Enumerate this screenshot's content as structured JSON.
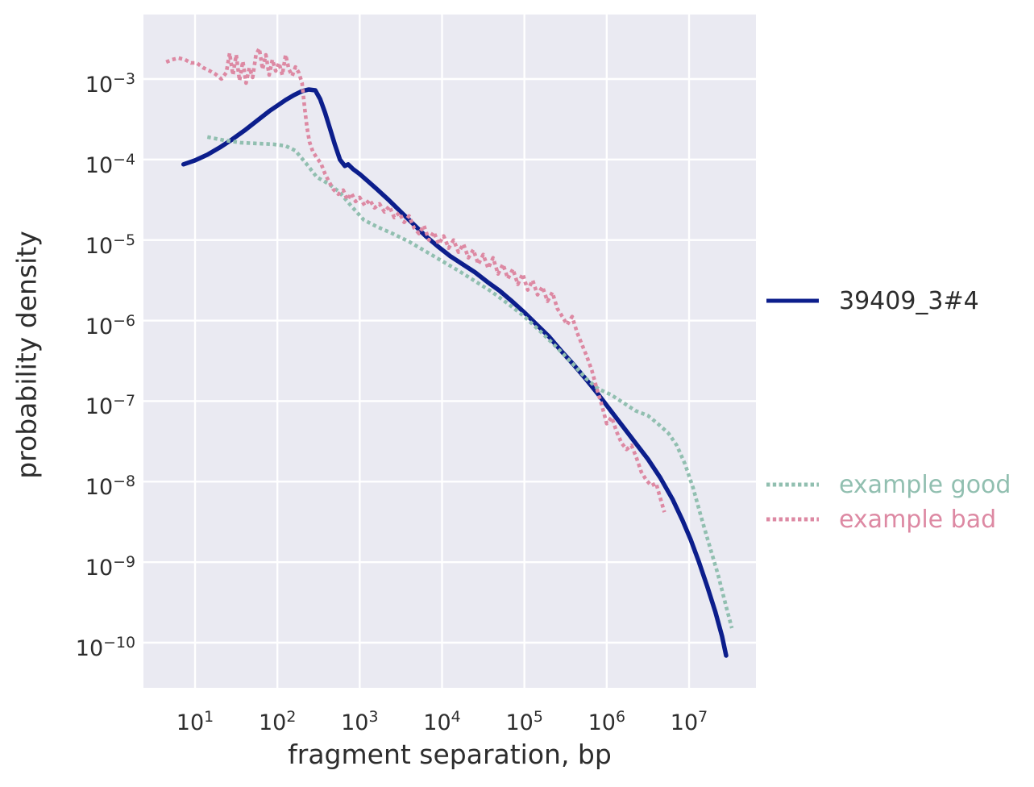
{
  "chart_data": {
    "type": "line",
    "title": "",
    "xlabel": "fragment separation, bp",
    "ylabel": "probability density",
    "x_scale": "log10",
    "y_scale": "log10",
    "tick_base": "10",
    "x_tick_exponents": [
      1,
      2,
      3,
      4,
      5,
      6,
      7
    ],
    "y_tick_exponents": [
      -3,
      -4,
      -5,
      -6,
      -7,
      -8,
      -9,
      -10
    ],
    "x_range_log10": [
      0.37,
      7.81
    ],
    "y_range_log10": [
      -10.56,
      -2.2
    ],
    "grid": true,
    "grid_color": "#ffffff",
    "background": "#eaeaf2",
    "legend_position": "right-outside",
    "series": [
      {
        "name": "39409_3#4",
        "color": "#0c1e8c",
        "style": "solid",
        "points_log10": [
          [
            0.86,
            -4.06
          ],
          [
            1.0,
            -4.01
          ],
          [
            1.15,
            -3.94
          ],
          [
            1.3,
            -3.85
          ],
          [
            1.45,
            -3.75
          ],
          [
            1.6,
            -3.64
          ],
          [
            1.75,
            -3.52
          ],
          [
            1.9,
            -3.4
          ],
          [
            2.0,
            -3.33
          ],
          [
            2.1,
            -3.26
          ],
          [
            2.2,
            -3.2
          ],
          [
            2.3,
            -3.15
          ],
          [
            2.38,
            -3.13
          ],
          [
            2.46,
            -3.14
          ],
          [
            2.52,
            -3.25
          ],
          [
            2.58,
            -3.42
          ],
          [
            2.64,
            -3.62
          ],
          [
            2.7,
            -3.82
          ],
          [
            2.76,
            -4.0
          ],
          [
            2.82,
            -4.08
          ],
          [
            2.86,
            -4.06
          ],
          [
            2.92,
            -4.12
          ],
          [
            3.0,
            -4.18
          ],
          [
            3.1,
            -4.27
          ],
          [
            3.2,
            -4.36
          ],
          [
            3.35,
            -4.5
          ],
          [
            3.5,
            -4.65
          ],
          [
            3.65,
            -4.8
          ],
          [
            3.8,
            -4.95
          ],
          [
            3.95,
            -5.08
          ],
          [
            4.1,
            -5.2
          ],
          [
            4.25,
            -5.3
          ],
          [
            4.4,
            -5.4
          ],
          [
            4.55,
            -5.52
          ],
          [
            4.7,
            -5.63
          ],
          [
            4.85,
            -5.76
          ],
          [
            5.0,
            -5.9
          ],
          [
            5.15,
            -6.05
          ],
          [
            5.3,
            -6.2
          ],
          [
            5.45,
            -6.38
          ],
          [
            5.6,
            -6.55
          ],
          [
            5.75,
            -6.73
          ],
          [
            5.9,
            -6.92
          ],
          [
            6.05,
            -7.12
          ],
          [
            6.2,
            -7.32
          ],
          [
            6.35,
            -7.52
          ],
          [
            6.5,
            -7.72
          ],
          [
            6.65,
            -7.95
          ],
          [
            6.8,
            -8.22
          ],
          [
            6.92,
            -8.48
          ],
          [
            7.02,
            -8.72
          ],
          [
            7.12,
            -9.0
          ],
          [
            7.22,
            -9.3
          ],
          [
            7.32,
            -9.62
          ],
          [
            7.4,
            -9.92
          ],
          [
            7.45,
            -10.16
          ]
        ]
      },
      {
        "name": "example good",
        "color": "#91bfb0",
        "style": "dotted",
        "points_log10": [
          [
            1.15,
            -3.72
          ],
          [
            1.35,
            -3.76
          ],
          [
            1.55,
            -3.79
          ],
          [
            1.75,
            -3.8
          ],
          [
            1.95,
            -3.81
          ],
          [
            2.1,
            -3.83
          ],
          [
            2.22,
            -3.89
          ],
          [
            2.35,
            -4.05
          ],
          [
            2.48,
            -4.22
          ],
          [
            2.62,
            -4.3
          ],
          [
            2.75,
            -4.4
          ],
          [
            2.9,
            -4.58
          ],
          [
            3.05,
            -4.75
          ],
          [
            3.2,
            -4.83
          ],
          [
            3.4,
            -4.92
          ],
          [
            3.6,
            -5.02
          ],
          [
            3.8,
            -5.14
          ],
          [
            4.0,
            -5.26
          ],
          [
            4.2,
            -5.38
          ],
          [
            4.4,
            -5.51
          ],
          [
            4.6,
            -5.64
          ],
          [
            4.8,
            -5.79
          ],
          [
            5.0,
            -5.95
          ],
          [
            5.2,
            -6.14
          ],
          [
            5.4,
            -6.34
          ],
          [
            5.6,
            -6.55
          ],
          [
            5.75,
            -6.72
          ],
          [
            5.9,
            -6.85
          ],
          [
            6.05,
            -6.92
          ],
          [
            6.2,
            -7.02
          ],
          [
            6.35,
            -7.12
          ],
          [
            6.5,
            -7.18
          ],
          [
            6.62,
            -7.28
          ],
          [
            6.75,
            -7.4
          ],
          [
            6.85,
            -7.55
          ],
          [
            6.95,
            -7.78
          ],
          [
            7.05,
            -8.08
          ],
          [
            7.15,
            -8.45
          ],
          [
            7.25,
            -8.8
          ],
          [
            7.35,
            -9.15
          ],
          [
            7.45,
            -9.55
          ],
          [
            7.52,
            -9.82
          ]
        ]
      },
      {
        "name": "example bad",
        "color": "#dd89a3",
        "style": "dotted",
        "points_log10": [
          [
            0.65,
            -2.79
          ],
          [
            0.72,
            -2.76
          ],
          [
            0.8,
            -2.74
          ],
          [
            0.88,
            -2.76
          ],
          [
            0.95,
            -2.8
          ],
          [
            1.02,
            -2.8
          ],
          [
            1.1,
            -2.86
          ],
          [
            1.18,
            -2.9
          ],
          [
            1.25,
            -2.94
          ],
          [
            1.32,
            -3.0
          ],
          [
            1.38,
            -2.92
          ],
          [
            1.42,
            -2.68
          ],
          [
            1.46,
            -2.95
          ],
          [
            1.5,
            -2.7
          ],
          [
            1.54,
            -3.02
          ],
          [
            1.58,
            -2.78
          ],
          [
            1.62,
            -3.05
          ],
          [
            1.66,
            -2.86
          ],
          [
            1.7,
            -2.98
          ],
          [
            1.74,
            -2.7
          ],
          [
            1.78,
            -2.62
          ],
          [
            1.82,
            -2.88
          ],
          [
            1.86,
            -2.7
          ],
          [
            1.9,
            -2.95
          ],
          [
            1.94,
            -2.76
          ],
          [
            1.98,
            -2.9
          ],
          [
            2.02,
            -2.8
          ],
          [
            2.06,
            -2.95
          ],
          [
            2.1,
            -2.7
          ],
          [
            2.14,
            -2.88
          ],
          [
            2.18,
            -2.96
          ],
          [
            2.22,
            -2.85
          ],
          [
            2.26,
            -2.92
          ],
          [
            2.3,
            -3.05
          ],
          [
            2.33,
            -3.35
          ],
          [
            2.36,
            -3.6
          ],
          [
            2.39,
            -3.78
          ],
          [
            2.43,
            -3.9
          ],
          [
            2.48,
            -3.98
          ],
          [
            2.53,
            -4.05
          ],
          [
            2.58,
            -4.18
          ],
          [
            2.63,
            -4.28
          ],
          [
            2.68,
            -4.37
          ],
          [
            2.74,
            -4.43
          ],
          [
            2.8,
            -4.38
          ],
          [
            2.85,
            -4.5
          ],
          [
            2.9,
            -4.42
          ],
          [
            2.95,
            -4.52
          ],
          [
            3.0,
            -4.47
          ],
          [
            3.06,
            -4.57
          ],
          [
            3.12,
            -4.5
          ],
          [
            3.18,
            -4.6
          ],
          [
            3.24,
            -4.55
          ],
          [
            3.3,
            -4.65
          ],
          [
            3.36,
            -4.58
          ],
          [
            3.42,
            -4.72
          ],
          [
            3.48,
            -4.66
          ],
          [
            3.54,
            -4.78
          ],
          [
            3.6,
            -4.7
          ],
          [
            3.66,
            -4.85
          ],
          [
            3.72,
            -4.92
          ],
          [
            3.78,
            -4.82
          ],
          [
            3.84,
            -5.0
          ],
          [
            3.9,
            -4.9
          ],
          [
            3.96,
            -5.05
          ],
          [
            4.02,
            -4.95
          ],
          [
            4.08,
            -5.1
          ],
          [
            4.14,
            -5.0
          ],
          [
            4.2,
            -5.15
          ],
          [
            4.26,
            -5.05
          ],
          [
            4.32,
            -5.22
          ],
          [
            4.38,
            -5.12
          ],
          [
            4.44,
            -5.3
          ],
          [
            4.5,
            -5.18
          ],
          [
            4.56,
            -5.35
          ],
          [
            4.62,
            -5.22
          ],
          [
            4.68,
            -5.42
          ],
          [
            4.74,
            -5.3
          ],
          [
            4.8,
            -5.48
          ],
          [
            4.86,
            -5.36
          ],
          [
            4.92,
            -5.55
          ],
          [
            4.98,
            -5.42
          ],
          [
            5.04,
            -5.62
          ],
          [
            5.1,
            -5.5
          ],
          [
            5.16,
            -5.68
          ],
          [
            5.22,
            -5.58
          ],
          [
            5.28,
            -5.76
          ],
          [
            5.34,
            -5.65
          ],
          [
            5.4,
            -5.85
          ],
          [
            5.46,
            -5.95
          ],
          [
            5.52,
            -6.05
          ],
          [
            5.58,
            -5.95
          ],
          [
            5.64,
            -6.15
          ],
          [
            5.7,
            -6.3
          ],
          [
            5.76,
            -6.45
          ],
          [
            5.82,
            -6.62
          ],
          [
            5.88,
            -6.85
          ],
          [
            5.94,
            -7.05
          ],
          [
            6.0,
            -7.28
          ],
          [
            6.06,
            -7.2
          ],
          [
            6.12,
            -7.38
          ],
          [
            6.18,
            -7.52
          ],
          [
            6.24,
            -7.6
          ],
          [
            6.3,
            -7.55
          ],
          [
            6.36,
            -7.7
          ],
          [
            6.42,
            -7.88
          ],
          [
            6.48,
            -7.98
          ],
          [
            6.54,
            -8.05
          ],
          [
            6.6,
            -8.02
          ],
          [
            6.65,
            -8.2
          ],
          [
            6.7,
            -8.38
          ]
        ]
      }
    ]
  },
  "legend": {
    "items": [
      {
        "label": "39409_3#4",
        "series_index": 0,
        "text_color": "#2d2d2d"
      },
      {
        "label": "example good",
        "series_index": 1,
        "text_color": "#91bfb0"
      },
      {
        "label": "example bad",
        "series_index": 2,
        "text_color": "#dd89a3"
      }
    ]
  }
}
